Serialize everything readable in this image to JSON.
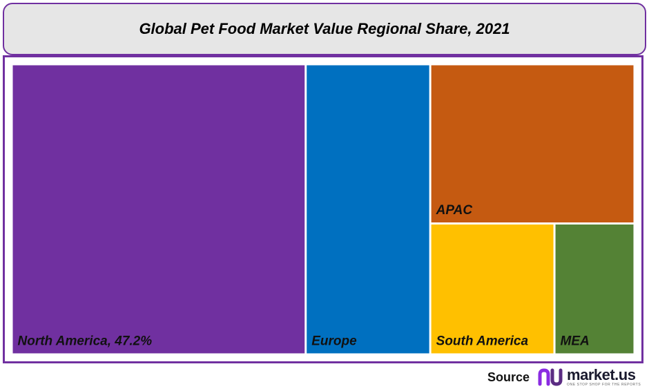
{
  "title": "Global Pet Food Market Value Regional Share, 2021",
  "source": {
    "label": "Source",
    "brand": "market.us",
    "tagline": "ONE STOP SHOP FOR THE REPORTS"
  },
  "colors": {
    "north_america": "#7030a0",
    "europe": "#0070c0",
    "apac": "#c55a11",
    "south_america": "#ffc000",
    "mea": "#548235",
    "border": "#7030a0",
    "title_bg": "#e6e6e6"
  },
  "chart_data": {
    "type": "treemap",
    "title": "Global Pet Food Market Value Regional Share, 2021",
    "unit": "%",
    "items": [
      {
        "name": "North America",
        "label": "North America, 47.2%",
        "value": 47.2,
        "color": "#7030a0"
      },
      {
        "name": "Europe",
        "label": "Europe",
        "value": 20.0,
        "color": "#0070c0"
      },
      {
        "name": "APAC",
        "label": "APAC",
        "value": 18.0,
        "color": "#c55a11"
      },
      {
        "name": "South America",
        "label": "South America",
        "value": 9.0,
        "color": "#ffc000"
      },
      {
        "name": "MEA",
        "label": "MEA",
        "value": 5.8,
        "color": "#548235"
      }
    ]
  }
}
